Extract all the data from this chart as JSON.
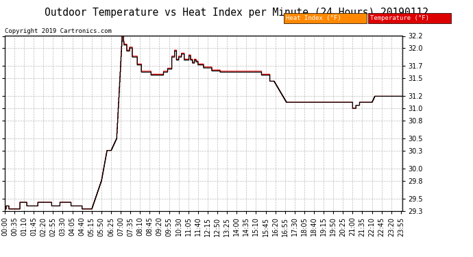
{
  "title": "Outdoor Temperature vs Heat Index per Minute (24 Hours) 20190112",
  "copyright": "Copyright 2019 Cartronics.com",
  "legend_heat_index": "Heat Index (°F)",
  "legend_temp": "Temperature (°F)",
  "ylim": [
    29.3,
    32.2
  ],
  "yticks": [
    29.3,
    29.5,
    29.8,
    30.0,
    30.3,
    30.5,
    30.8,
    31.0,
    31.2,
    31.5,
    31.7,
    32.0,
    32.2
  ],
  "bg_color": "#ffffff",
  "plot_bg_color": "#ffffff",
  "grid_color": "#aaaaaa",
  "line_color_heat": "#dd0000",
  "line_color_temp": "#000000",
  "legend_heat_bg": "#ff8800",
  "legend_temp_bg": "#dd0000",
  "title_fontsize": 10.5,
  "tick_fontsize": 7,
  "xtick_interval_minutes": 35,
  "total_minutes": 1440
}
